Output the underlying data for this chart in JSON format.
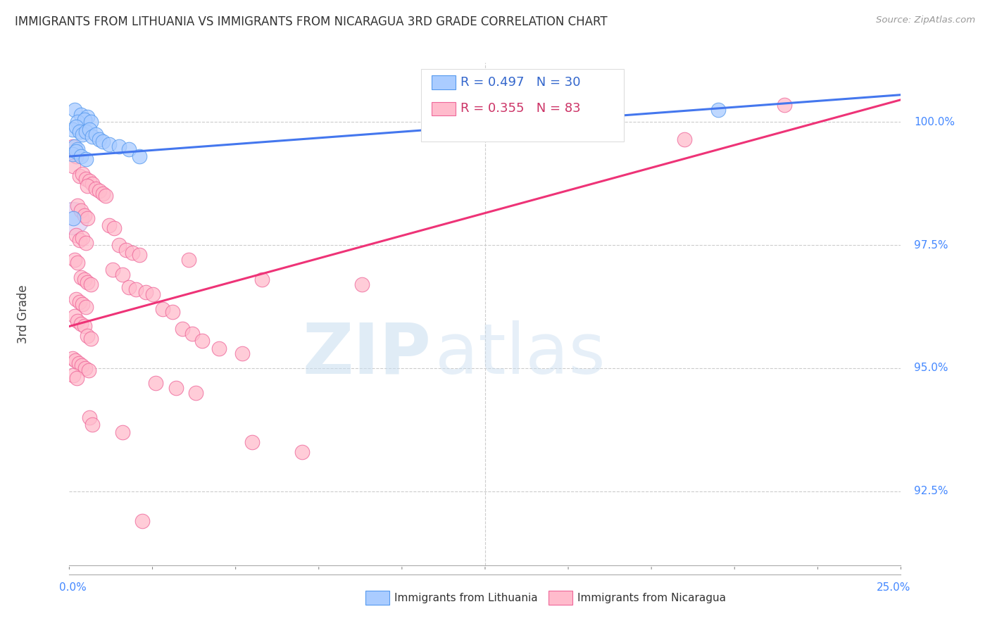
{
  "title": "IMMIGRANTS FROM LITHUANIA VS IMMIGRANTS FROM NICARAGUA 3RD GRADE CORRELATION CHART",
  "source": "Source: ZipAtlas.com",
  "ylabel": "3rd Grade",
  "xmin": 0.0,
  "xmax": 25.0,
  "ymin": 91.0,
  "ymax": 101.2,
  "blue_line": {
    "x0": 0.0,
    "y0": 99.3,
    "x1": 25.0,
    "y1": 100.55
  },
  "pink_line": {
    "x0": 0.0,
    "y0": 95.85,
    "x1": 25.0,
    "y1": 100.45
  },
  "lithuania_points": [
    [
      0.15,
      100.25
    ],
    [
      0.35,
      100.15
    ],
    [
      0.55,
      100.1
    ],
    [
      0.25,
      100.0
    ],
    [
      0.45,
      100.05
    ],
    [
      0.65,
      100.0
    ],
    [
      0.1,
      99.85
    ],
    [
      0.2,
      99.9
    ],
    [
      0.3,
      99.8
    ],
    [
      0.4,
      99.75
    ],
    [
      0.5,
      99.8
    ],
    [
      0.6,
      99.85
    ],
    [
      0.7,
      99.7
    ],
    [
      0.8,
      99.75
    ],
    [
      0.9,
      99.65
    ],
    [
      1.0,
      99.6
    ],
    [
      1.2,
      99.55
    ],
    [
      1.5,
      99.5
    ],
    [
      0.15,
      99.5
    ],
    [
      0.25,
      99.45
    ],
    [
      0.1,
      99.35
    ],
    [
      0.2,
      99.4
    ],
    [
      0.35,
      99.3
    ],
    [
      0.5,
      99.25
    ],
    [
      1.8,
      99.45
    ],
    [
      2.1,
      99.3
    ],
    [
      0.12,
      98.05
    ],
    [
      12.5,
      100.1
    ],
    [
      16.0,
      100.15
    ],
    [
      19.5,
      100.25
    ]
  ],
  "nicaragua_points": [
    [
      0.1,
      99.5
    ],
    [
      0.2,
      99.3
    ],
    [
      0.12,
      99.1
    ],
    [
      0.3,
      98.9
    ],
    [
      0.4,
      98.95
    ],
    [
      0.5,
      98.85
    ],
    [
      0.6,
      98.8
    ],
    [
      0.7,
      98.75
    ],
    [
      0.55,
      98.7
    ],
    [
      0.8,
      98.65
    ],
    [
      0.9,
      98.6
    ],
    [
      1.0,
      98.55
    ],
    [
      1.1,
      98.5
    ],
    [
      0.25,
      98.3
    ],
    [
      0.35,
      98.2
    ],
    [
      0.45,
      98.1
    ],
    [
      0.55,
      98.05
    ],
    [
      1.2,
      97.9
    ],
    [
      1.35,
      97.85
    ],
    [
      0.2,
      97.7
    ],
    [
      0.3,
      97.6
    ],
    [
      0.4,
      97.65
    ],
    [
      0.5,
      97.55
    ],
    [
      1.5,
      97.5
    ],
    [
      1.7,
      97.4
    ],
    [
      1.9,
      97.35
    ],
    [
      2.1,
      97.3
    ],
    [
      0.15,
      97.2
    ],
    [
      0.25,
      97.15
    ],
    [
      1.3,
      97.0
    ],
    [
      1.6,
      96.9
    ],
    [
      0.35,
      96.85
    ],
    [
      0.45,
      96.8
    ],
    [
      0.55,
      96.75
    ],
    [
      0.65,
      96.7
    ],
    [
      1.8,
      96.65
    ],
    [
      2.0,
      96.6
    ],
    [
      2.3,
      96.55
    ],
    [
      2.5,
      96.5
    ],
    [
      0.2,
      96.4
    ],
    [
      0.3,
      96.35
    ],
    [
      0.4,
      96.3
    ],
    [
      0.5,
      96.25
    ],
    [
      2.8,
      96.2
    ],
    [
      3.1,
      96.15
    ],
    [
      0.15,
      96.05
    ],
    [
      0.25,
      95.95
    ],
    [
      0.35,
      95.9
    ],
    [
      0.45,
      95.85
    ],
    [
      3.4,
      95.8
    ],
    [
      3.7,
      95.7
    ],
    [
      0.55,
      95.65
    ],
    [
      0.65,
      95.6
    ],
    [
      4.0,
      95.55
    ],
    [
      4.5,
      95.4
    ],
    [
      5.2,
      95.3
    ],
    [
      5.8,
      96.8
    ],
    [
      0.1,
      95.2
    ],
    [
      0.18,
      95.15
    ],
    [
      0.28,
      95.1
    ],
    [
      0.38,
      95.05
    ],
    [
      0.48,
      95.0
    ],
    [
      0.58,
      94.95
    ],
    [
      0.12,
      94.85
    ],
    [
      0.22,
      94.8
    ],
    [
      2.6,
      94.7
    ],
    [
      3.2,
      94.6
    ],
    [
      3.8,
      94.5
    ],
    [
      0.6,
      94.0
    ],
    [
      0.7,
      93.85
    ],
    [
      1.6,
      93.7
    ],
    [
      5.5,
      93.5
    ],
    [
      7.0,
      93.3
    ],
    [
      3.6,
      97.2
    ],
    [
      8.8,
      96.7
    ],
    [
      2.2,
      91.9
    ],
    [
      18.5,
      99.65
    ],
    [
      21.5,
      100.35
    ]
  ],
  "watermark_zip": "ZIP",
  "watermark_atlas": "atlas",
  "bg_color": "#ffffff",
  "grid_color": "#cccccc",
  "blue_scatter_color": "#aaccff",
  "pink_scatter_color": "#ffbbcc",
  "blue_edge_color": "#5599ee",
  "pink_edge_color": "#ee6699",
  "blue_line_color": "#4477ee",
  "pink_line_color": "#ee3377",
  "blue_text_color": "#3366cc",
  "pink_text_color": "#cc3366",
  "title_color": "#333333",
  "axis_label_color": "#4488ff",
  "right_tick_labels": [
    [
      92.5,
      "92.5%"
    ],
    [
      95.0,
      "95.0%"
    ],
    [
      97.5,
      "97.5%"
    ],
    [
      100.0,
      "100.0%"
    ]
  ]
}
